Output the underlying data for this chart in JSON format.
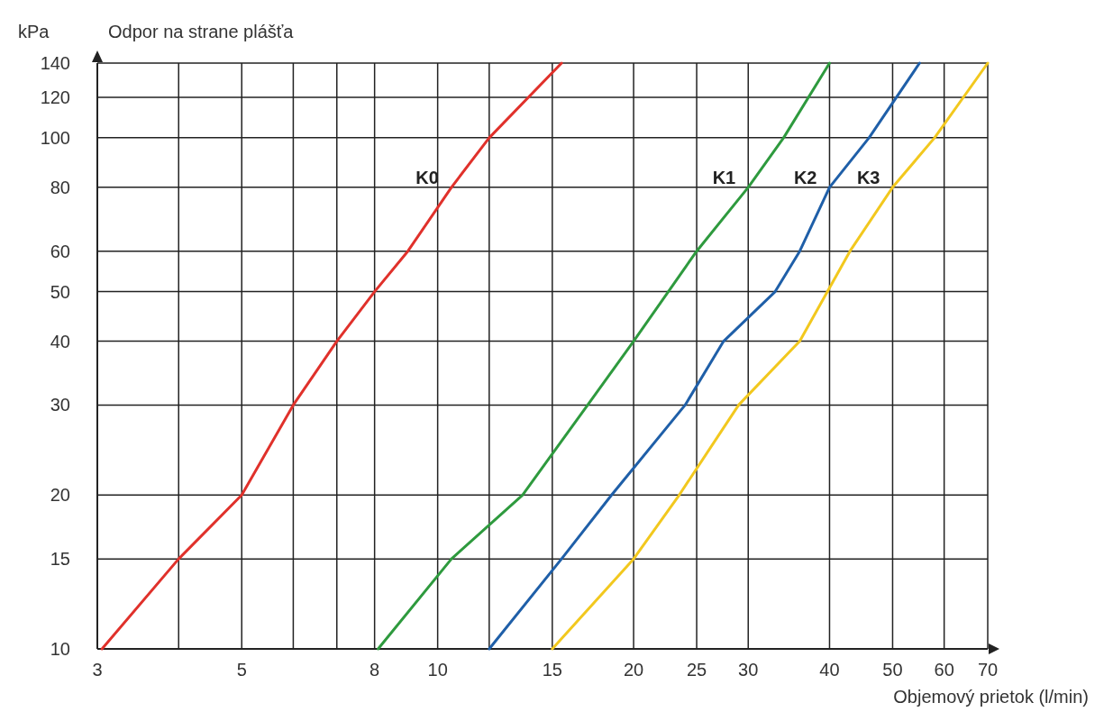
{
  "chart_data": {
    "type": "line",
    "title": "Odpor na strane plášťa",
    "xlabel": "Objemový prietok (l/min)",
    "ylabel": "kPa",
    "log": "xy",
    "grid": true,
    "marker": "none",
    "line_style": "solid",
    "xlim": [
      3,
      70
    ],
    "ylim": [
      10,
      140
    ],
    "xticks": [
      3,
      {
        "value": 4,
        "label": null
      },
      5,
      {
        "value": 6,
        "label": null
      },
      {
        "value": 7,
        "label": null
      },
      8,
      10,
      {
        "value": 12,
        "label": null
      },
      15,
      20,
      25,
      30,
      40,
      50,
      60,
      70
    ],
    "yticks": [
      10,
      15,
      20,
      30,
      40,
      50,
      60,
      80,
      100,
      120,
      140
    ],
    "series": [
      {
        "name": "K0",
        "color": "#e0312b",
        "x": [
          3.05,
          4,
          5,
          6,
          7,
          8,
          9,
          10.5,
          12,
          15.5
        ],
        "values": [
          10,
          15,
          20,
          30,
          40,
          50,
          60,
          80,
          100,
          140
        ]
      },
      {
        "name": "K1",
        "color": "#2e9a3e",
        "x": [
          8.1,
          10.5,
          13.5,
          17,
          20,
          25,
          30,
          34,
          40
        ],
        "values": [
          10,
          15,
          20,
          30,
          40,
          60,
          80,
          100,
          140
        ]
      },
      {
        "name": "K2",
        "color": "#1f5fa8",
        "x": [
          12,
          15.5,
          18.5,
          24,
          27.5,
          33,
          36,
          40,
          46,
          55
        ],
        "values": [
          10,
          15,
          20,
          30,
          40,
          50,
          60,
          80,
          100,
          140
        ]
      },
      {
        "name": "K3",
        "color": "#f2c81e",
        "x": [
          15,
          20,
          23.5,
          29,
          36,
          43,
          50,
          58,
          70
        ],
        "values": [
          10,
          15,
          20,
          30,
          40,
          60,
          80,
          100,
          140
        ]
      }
    ]
  }
}
